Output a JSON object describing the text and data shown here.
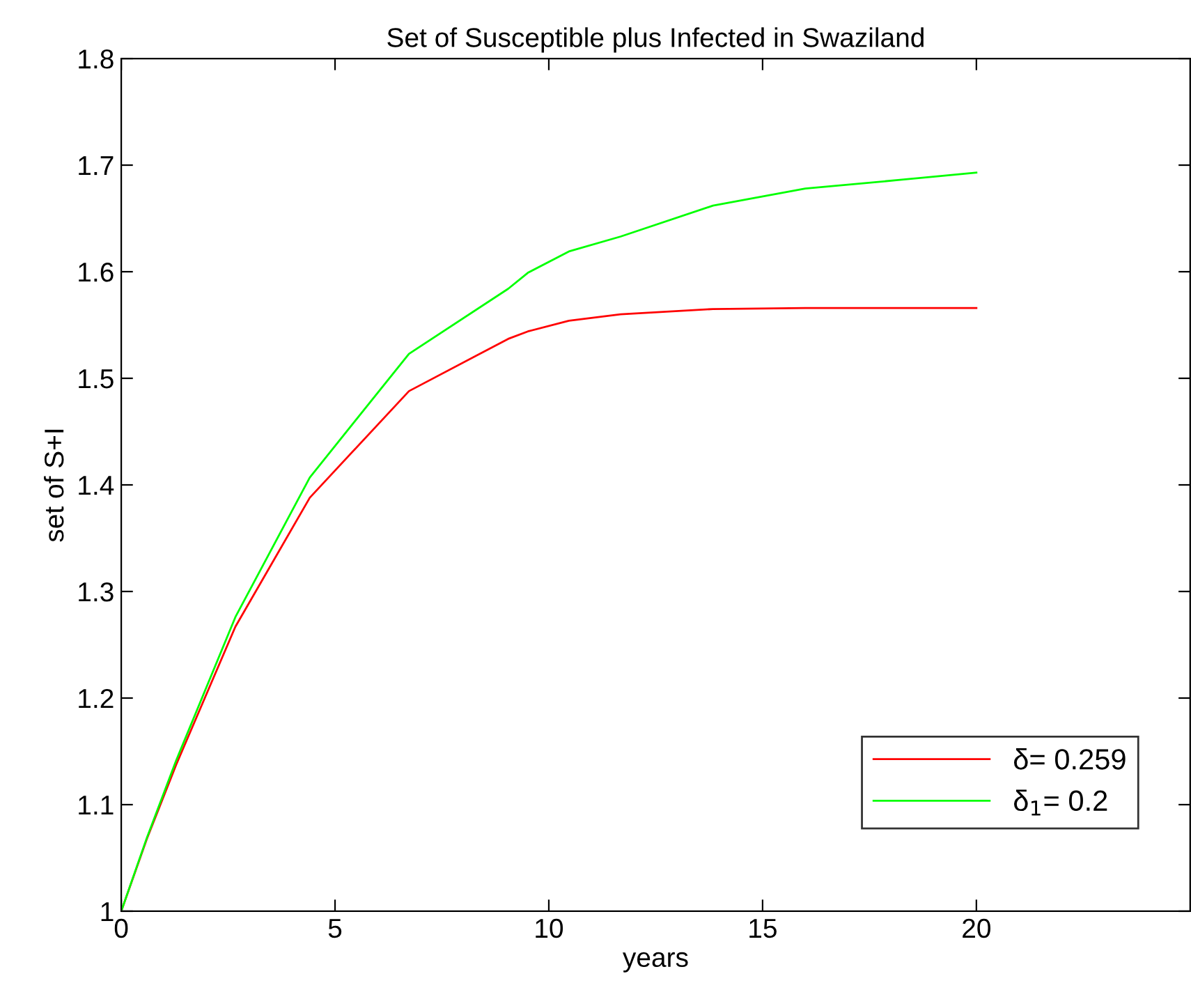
{
  "chart_data": {
    "type": "line",
    "title": "Set of Susceptible plus Infected in Swaziland",
    "xlabel": "years",
    "ylabel": "set of S+I",
    "xlim": [
      0,
      25
    ],
    "ylim": [
      1,
      1.8
    ],
    "xticks": [
      0,
      5,
      10,
      15,
      20
    ],
    "yticks": [
      1,
      {
        "value": 1.1,
        "label": "1.1"
      },
      {
        "value": 1.2,
        "label": "1.2"
      },
      {
        "value": 1.3,
        "label": "1.3"
      },
      {
        "value": 1.4,
        "label": "1.4"
      },
      {
        "value": 1.5,
        "label": "1.5"
      },
      {
        "value": 1.6,
        "label": "1.6"
      },
      {
        "value": 1.7,
        "label": "1.7"
      },
      {
        "value": 1.8,
        "label": "1.8"
      }
    ],
    "grid": false,
    "legend": "bottom right",
    "line_style": "solid",
    "marker": "none",
    "x": [
      0,
      0.6,
      1.28,
      2.67,
      4.41,
      6.73,
      9.05,
      9.51,
      10.47,
      11.68,
      13.84,
      16,
      18.17,
      20
    ],
    "series": [
      {
        "name": "δ= 0.259",
        "color": "#ff0000",
        "values": [
          1,
          1.068,
          1.137,
          1.267,
          1.388,
          1.488,
          1.537,
          1.544,
          1.554,
          1.56,
          1.565,
          1.566,
          1.566,
          1.566
        ]
      },
      {
        "name": "δ$_{1}$= 0.2",
        "color": "#00ff00",
        "values": [
          1,
          1.069,
          1.141,
          1.276,
          1.407,
          1.523,
          1.584,
          1.599,
          1.619,
          1.633,
          1.662,
          1.678,
          1.686,
          1.693
        ]
      }
    ]
  }
}
